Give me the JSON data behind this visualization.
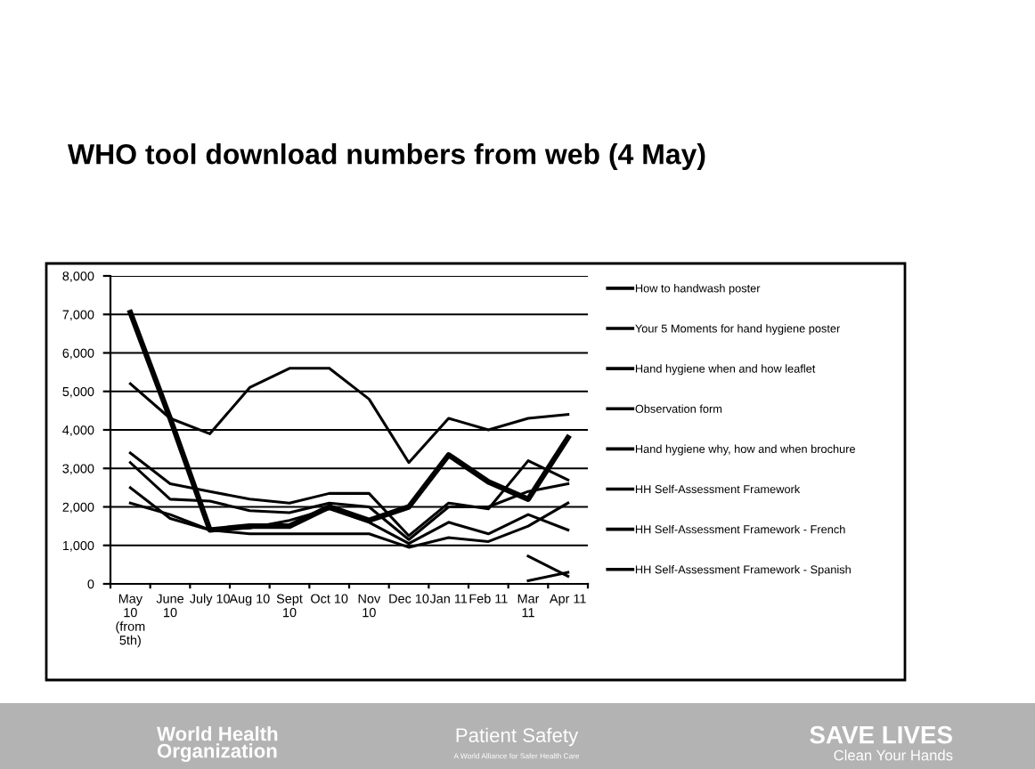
{
  "chart_data": {
    "type": "line",
    "title": "WHO tool download numbers from web (4 May)",
    "categories": [
      "May\n10\n(from\n5th)",
      "June\n10",
      "July 10",
      "Aug 10",
      "Sept\n10",
      "Oct 10",
      "Nov\n10",
      "Dec 10",
      "Jan 11",
      "Feb 11",
      "Mar\n11",
      "Apr 11"
    ],
    "series": [
      {
        "name": "How to handwash poster",
        "color": "#000000",
        "values": [
          7050,
          4300,
          1400,
          1500,
          1500,
          2000,
          1650,
          2000,
          3350,
          2650,
          2200,
          3800
        ]
      },
      {
        "name": "Your 5 Moments for hand hygiene poster",
        "color": "#000000",
        "values": [
          5200,
          4300,
          3900,
          5100,
          5600,
          5600,
          4800,
          3150,
          4300,
          4000,
          4300,
          4400
        ]
      },
      {
        "name": "Hand hygiene when and how leaflet",
        "color": "#000000",
        "values": [
          3400,
          2600,
          2400,
          2200,
          2100,
          2350,
          2350,
          1250,
          2100,
          1950,
          3200,
          2700
        ]
      },
      {
        "name": "Observation form",
        "color": "#000000",
        "values": [
          3150,
          2200,
          2150,
          1900,
          1850,
          2100,
          2000,
          1150,
          2000,
          2000,
          2400,
          2600
        ]
      },
      {
        "name": "Hand hygiene why, how and when brochure",
        "color": "#000000",
        "values": [
          2500,
          1700,
          1400,
          1450,
          1650,
          1950,
          1600,
          1050,
          1600,
          1300,
          1800,
          1400
        ]
      },
      {
        "name": "HH Self-Assessment Framework",
        "color": "#000000",
        "values": [
          2100,
          1800,
          1400,
          1300,
          1300,
          1300,
          1300,
          950,
          1200,
          1100,
          1500,
          2100
        ]
      },
      {
        "name": "HH Self-Assessment Framework - French",
        "color": "#000000",
        "values": [
          null,
          null,
          null,
          null,
          null,
          null,
          null,
          null,
          null,
          null,
          720,
          200
        ]
      },
      {
        "name": "HH Self-Assessment Framework - Spanish",
        "color": "#000000",
        "values": [
          null,
          null,
          null,
          null,
          null,
          null,
          null,
          null,
          null,
          null,
          80,
          300
        ]
      }
    ],
    "ylim": [
      0,
      8000
    ],
    "yticks": [
      0,
      {
        "value": 1000,
        "label": "1,000"
      },
      {
        "value": 2000,
        "label": "2,000"
      },
      {
        "value": 3000,
        "label": "3,000"
      },
      {
        "value": 4000,
        "label": "4,000"
      },
      {
        "value": 5000,
        "label": "5,000"
      },
      {
        "value": 6000,
        "label": "6,000"
      },
      {
        "value": 7000,
        "label": "7,000"
      },
      {
        "value": 8000,
        "label": "8,000"
      }
    ],
    "grid": "y",
    "legend": "right",
    "marker": "none",
    "line_style": "solid",
    "annotations": [
      "World Health\nOrganization",
      "Patient Safety",
      "A World Alliance for Safer Health Care",
      "SAVE LIVES",
      "Clean Your Hands"
    ]
  }
}
